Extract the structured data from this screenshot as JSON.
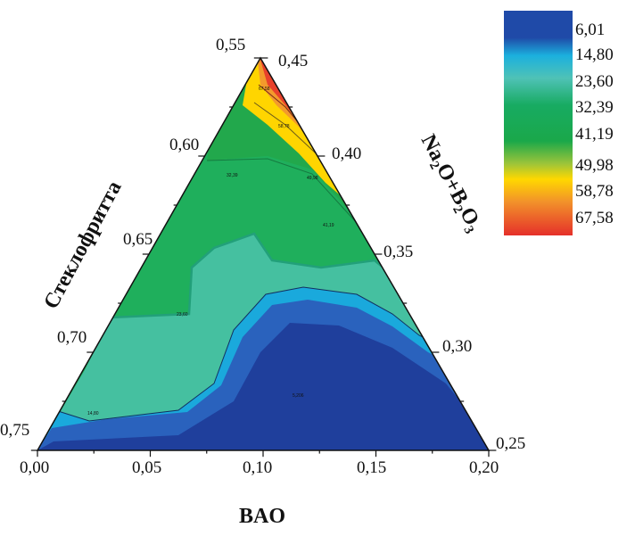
{
  "chart_data": {
    "type": "ternary-contour",
    "axes": {
      "left": {
        "label": "Стеклофритта",
        "ticks": [
          "0,55",
          "0,60",
          "0,65",
          "0,70",
          "0,75"
        ]
      },
      "right": {
        "label_parts": [
          "Na",
          "2",
          "O+B",
          "2",
          "O",
          "3"
        ],
        "ticks": [
          "0,45",
          "0,40",
          "0,35",
          "0,30",
          "0,25"
        ]
      },
      "bottom": {
        "label": "BAO",
        "ticks": [
          "0,00",
          "0,05",
          "0,10",
          "0,15",
          "0,20"
        ]
      }
    },
    "contour_levels": [
      "6,01",
      "14,80",
      "23,60",
      "32,39",
      "41,19",
      "49,98",
      "58,78",
      "67,58"
    ],
    "contour_labels": [
      "67,58",
      "58,78",
      "49,98",
      "41,19",
      "32,39",
      "23,60",
      "14,80",
      "5,206"
    ],
    "colorscale": [
      "#1f3f9c",
      "#1a8fd6",
      "#4fc3b8",
      "#16ab5e",
      "#20a84a",
      "#9cc83a",
      "#ffd400",
      "#f08a2a",
      "#e8312a"
    ],
    "legend_placement": "top-right"
  }
}
